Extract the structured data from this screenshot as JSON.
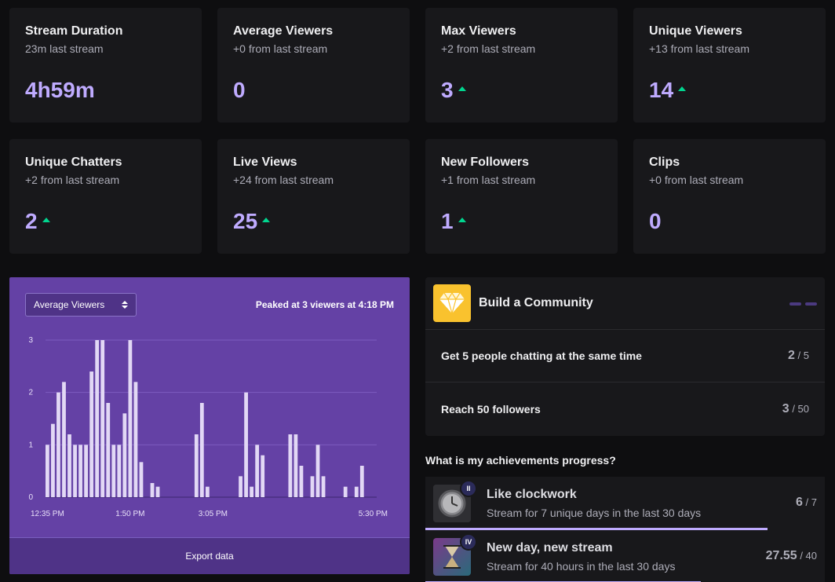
{
  "stats": [
    {
      "title": "Stream Duration",
      "sub": "23m last stream",
      "value": "4h59m",
      "up": false
    },
    {
      "title": "Average Viewers",
      "sub": "+0 from last stream",
      "value": "0",
      "up": false
    },
    {
      "title": "Max Viewers",
      "sub": "+2 from last stream",
      "value": "3",
      "up": true
    },
    {
      "title": "Unique Viewers",
      "sub": "+13 from last stream",
      "value": "14",
      "up": true
    },
    {
      "title": "Unique Chatters",
      "sub": "+2 from last stream",
      "value": "2",
      "up": true
    },
    {
      "title": "Live Views",
      "sub": "+24 from last stream",
      "value": "25",
      "up": true
    },
    {
      "title": "New Followers",
      "sub": "+1 from last stream",
      "value": "1",
      "up": true
    },
    {
      "title": "Clips",
      "sub": "+0 from last stream",
      "value": "0",
      "up": false
    }
  ],
  "chart_panel": {
    "select_value": "Average Viewers",
    "peak_prefix": "Peaked at ",
    "peak_value": "3 viewers",
    "peak_mid": " at ",
    "peak_time": "4:18 PM",
    "export_label": "Export data"
  },
  "chart_data": {
    "type": "bar",
    "color": "#e2d8f5",
    "ylim": [
      0,
      3
    ],
    "yticks": [
      "0",
      "1",
      "2",
      "3"
    ],
    "xticks": [
      {
        "label": "12:35 PM",
        "index": 0
      },
      {
        "label": "1:50 PM",
        "index": 15
      },
      {
        "label": "3:05 PM",
        "index": 30
      },
      {
        "label": "5:30 PM",
        "index": 59
      }
    ],
    "values": [
      1,
      1.4,
      2,
      2.2,
      1.2,
      1,
      1,
      1,
      2.4,
      3,
      3,
      1.8,
      1,
      1,
      1.6,
      3,
      2.2,
      0.67,
      0,
      0.27,
      0.2,
      0,
      0,
      0,
      0,
      0,
      0,
      1.2,
      1.8,
      0.2,
      0,
      0,
      0,
      0,
      0,
      0.4,
      2,
      0.2,
      1,
      0.8,
      0,
      0,
      0,
      0,
      1.2,
      1.2,
      0.6,
      0,
      0.4,
      1,
      0.4,
      0,
      0,
      0,
      0.2,
      0,
      0.2,
      0.6,
      0,
      0
    ]
  },
  "community": {
    "title": "Build a Community",
    "goals": [
      {
        "label": "Get 5 people chatting at the same time",
        "current": "2",
        "total": "/ 5"
      },
      {
        "label": "Reach 50 followers",
        "current": "3",
        "total": "/ 50"
      }
    ]
  },
  "achievements": {
    "heading": "What is my achievements progress?",
    "items": [
      {
        "title": "Like clockwork",
        "desc": "Stream for 7 unique days in the last 30 days",
        "current": "6",
        "total": "/ 7",
        "badge": "II",
        "progress": 0.857
      },
      {
        "title": "New day, new stream",
        "desc": "Stream for 40 hours in the last 30 days",
        "current": "27.55",
        "total": "/ 40",
        "badge": "IV",
        "progress": 0.689
      }
    ]
  }
}
